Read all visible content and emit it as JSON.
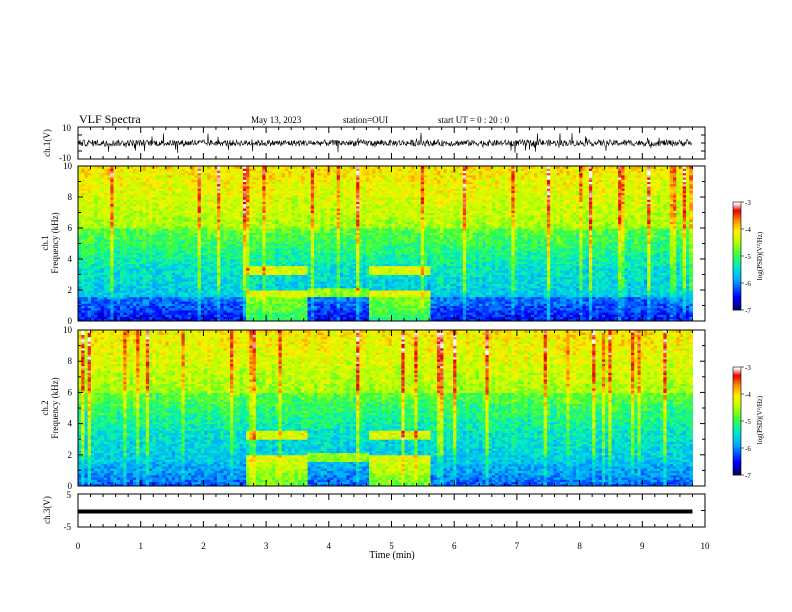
{
  "header": {
    "title": "VLF Spectra",
    "date": "May 13, 2023",
    "station": "station=OUI",
    "start": "start  UT =  0 : 20 : 0"
  },
  "chart_data": [
    {
      "type": "line",
      "panel": "ch1-waveform",
      "ylabel": "ch.1(V)",
      "ylim": [
        -10,
        10
      ],
      "yticks": [
        "10",
        "-10"
      ],
      "x_range_min": [
        0,
        10
      ],
      "note_series": "noisy waveform centered near 0 V, amplitude mostly within ±3 V with spikes to ±7 V"
    },
    {
      "type": "heatmap",
      "panel": "ch1-spectrogram",
      "ylabel": "ch.1\nFrequency (kHz)",
      "ylabel_line1": "ch.1",
      "ylabel_line2": "Frequency (kHz)",
      "ylim": [
        0,
        10
      ],
      "yticks": [
        "0",
        "2",
        "4",
        "6",
        "8",
        "10"
      ],
      "x_range_min": [
        0,
        10
      ],
      "data_end_min": 9.8,
      "colorbar": {
        "label": "log(PSD)(V²/Hz)",
        "range": [
          -7,
          -3
        ],
        "ticks": [
          "-3",
          "-4",
          "-5",
          "-6",
          "-7"
        ],
        "colors": [
          "#000080",
          "#0000ff",
          "#00c0ff",
          "#00ff80",
          "#c0ff00",
          "#ffff00",
          "#ff8000",
          "#ff0000",
          "#ffffff"
        ]
      },
      "segments_min": [
        0,
        2.65,
        3.65,
        4.6,
        5.6,
        6.8,
        8.9,
        9.8
      ]
    },
    {
      "type": "heatmap",
      "panel": "ch2-spectrogram",
      "ylabel_line1": "ch.2",
      "ylabel_line2": "Frequency (kHz)",
      "ylim": [
        0,
        10
      ],
      "yticks": [
        "0",
        "2",
        "4",
        "6",
        "8",
        "10"
      ],
      "x_range_min": [
        0,
        10
      ],
      "data_end_min": 9.8,
      "colorbar": {
        "label": "log(PSD)(V²/Hz)",
        "range": [
          -7,
          -3
        ],
        "ticks": [
          "-3",
          "-4",
          "-5",
          "-6",
          "-7"
        ]
      }
    },
    {
      "type": "line",
      "panel": "ch3-waveform",
      "ylabel": "ch.3(V)",
      "ylim": [
        -5,
        5
      ],
      "yticks": [
        "5",
        "-5"
      ],
      "x_range_min": [
        0,
        10
      ],
      "constant_value": -0.3,
      "data_end_min": 9.8
    }
  ],
  "xaxis": {
    "label": "Time (min)",
    "ticks": [
      "0",
      "1",
      "2",
      "3",
      "4",
      "5",
      "6",
      "7",
      "8",
      "9",
      "10"
    ]
  }
}
